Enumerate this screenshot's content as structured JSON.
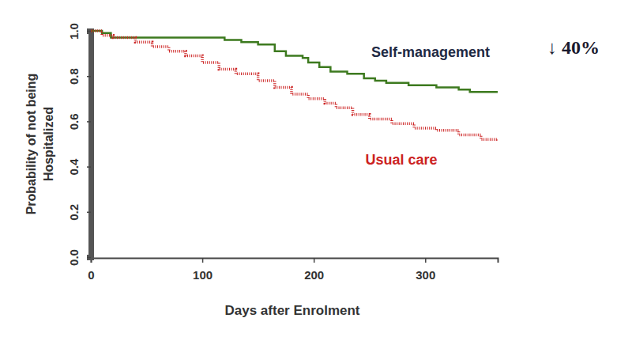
{
  "chart_data": {
    "type": "line",
    "x_label": "Days after Enrolment",
    "y_label": [
      "Probability of not being",
      "Hospitalized"
    ],
    "annotations": [
      "↓ 40%"
    ],
    "xlim": [
      0,
      365
    ],
    "xticks": [
      0,
      100,
      200,
      300
    ],
    "ylim": [
      0,
      1
    ],
    "yticks": [
      {
        "value": 0,
        "label": "0.0"
      },
      0.2,
      0.4,
      0.6,
      0.8,
      {
        "value": 1,
        "label": "1.0"
      }
    ],
    "grid": false,
    "series": [
      {
        "name": "Self-management",
        "color": "#3d7a1f",
        "line_style": "solid",
        "x": [
          0,
          10,
          18,
          120,
          135,
          150,
          165,
          175,
          190,
          195,
          205,
          215,
          230,
          245,
          255,
          265,
          285,
          310,
          330,
          340,
          365
        ],
        "values": [
          1.0,
          0.99,
          0.97,
          0.96,
          0.95,
          0.94,
          0.91,
          0.89,
          0.88,
          0.86,
          0.84,
          0.82,
          0.81,
          0.79,
          0.78,
          0.77,
          0.76,
          0.75,
          0.74,
          0.73,
          0.73
        ]
      },
      {
        "name": "Usual care",
        "color": "#cc2222",
        "line_style": "dotted",
        "x": [
          0,
          10,
          20,
          40,
          55,
          70,
          85,
          100,
          115,
          130,
          150,
          165,
          180,
          195,
          210,
          220,
          235,
          250,
          270,
          290,
          310,
          330,
          350,
          365
        ],
        "values": [
          1.0,
          0.98,
          0.97,
          0.95,
          0.93,
          0.91,
          0.89,
          0.86,
          0.83,
          0.81,
          0.78,
          0.75,
          0.72,
          0.7,
          0.68,
          0.66,
          0.63,
          0.61,
          0.59,
          0.57,
          0.56,
          0.54,
          0.52,
          0.51
        ]
      }
    ]
  }
}
